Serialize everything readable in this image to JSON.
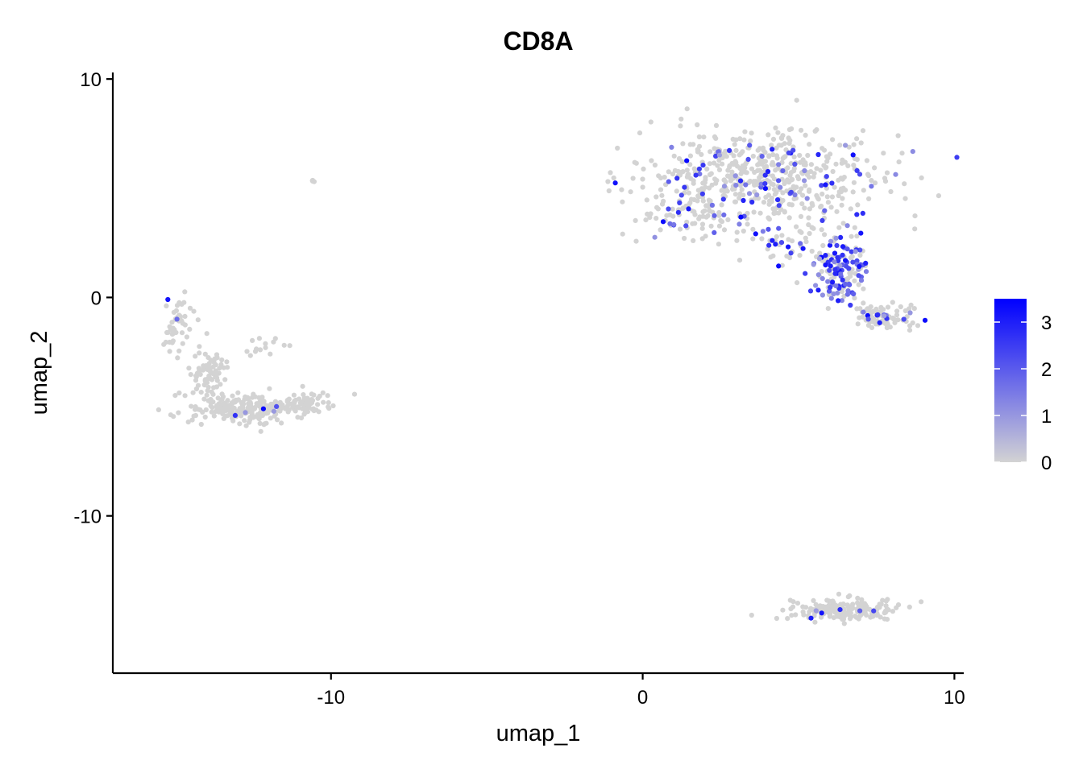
{
  "chart_data": {
    "type": "scatter",
    "title": "CD8A",
    "xlabel": "umap_1",
    "ylabel": "umap_2",
    "xlim": [
      -17,
      10.3
    ],
    "ylim": [
      -17.2,
      10.3
    ],
    "x_ticks": [
      -10,
      0,
      10
    ],
    "y_ticks": [
      10,
      0,
      -10
    ],
    "x_tick_labels": [
      "-10",
      "0",
      "10"
    ],
    "y_tick_labels": [
      "10",
      "0",
      "-10"
    ],
    "color_scale": {
      "low_color": "#d3d3d3",
      "high_color": "#0000ff",
      "min": 0,
      "max": 3.5,
      "ticks": [
        0,
        1,
        2,
        3
      ],
      "tick_labels": [
        "0",
        "1",
        "2",
        "3"
      ]
    },
    "legend_position": "right",
    "clusters": [
      {
        "cx": 3.8,
        "cy": 5.6,
        "sx": 2.6,
        "sy": 1.4,
        "n": 560,
        "expr_prob": 0.13
      },
      {
        "cx": 6.3,
        "cy": 1.4,
        "sx": 0.55,
        "sy": 1.1,
        "n": 150,
        "expr_prob": 0.62
      },
      {
        "cx": 7.7,
        "cy": -0.9,
        "sx": 0.65,
        "sy": 0.35,
        "n": 90,
        "expr_prob": 0.14
      },
      {
        "cx": 1.6,
        "cy": 3.6,
        "sx": 1.1,
        "sy": 0.6,
        "n": 70,
        "expr_prob": 0.28
      },
      {
        "cx": 4.6,
        "cy": 2.6,
        "sx": 0.8,
        "sy": 0.7,
        "n": 40,
        "expr_prob": 0.3
      },
      {
        "cx": -14.9,
        "cy": -1.1,
        "sx": 0.35,
        "sy": 0.8,
        "n": 45,
        "expr_prob": 0.04
      },
      {
        "cx": -14.0,
        "cy": -3.4,
        "sx": 0.6,
        "sy": 0.8,
        "n": 70,
        "expr_prob": 0.03
      },
      {
        "cx": -12.8,
        "cy": -5.1,
        "sx": 1.3,
        "sy": 0.45,
        "n": 210,
        "expr_prob": 0.03
      },
      {
        "cx": -10.9,
        "cy": -4.8,
        "sx": 0.7,
        "sy": 0.35,
        "n": 60,
        "expr_prob": 0.04
      },
      {
        "cx": -12.2,
        "cy": -2.3,
        "sx": 0.5,
        "sy": 0.3,
        "n": 14,
        "expr_prob": 0.0
      },
      {
        "cx": -10.6,
        "cy": 5.35,
        "sx": 0.06,
        "sy": 0.05,
        "n": 4,
        "expr_prob": 0.0
      },
      {
        "cx": 6.5,
        "cy": -14.3,
        "sx": 1.25,
        "sy": 0.33,
        "n": 190,
        "expr_prob": 0.04
      }
    ]
  }
}
